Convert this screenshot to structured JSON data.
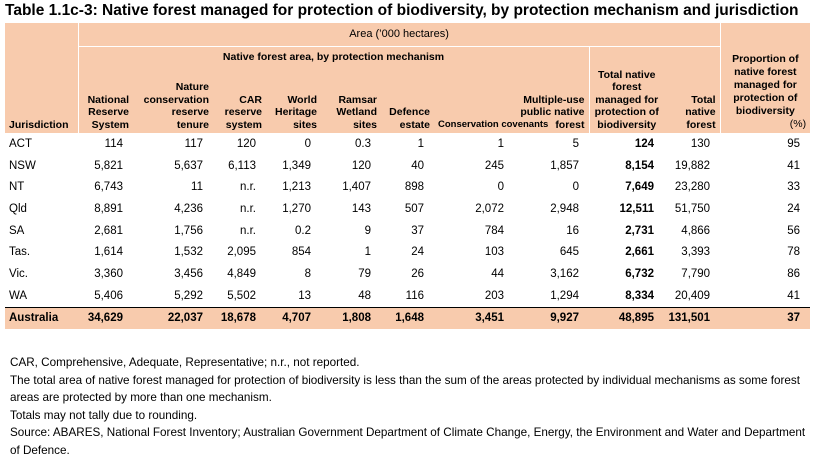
{
  "title": "Table 1.1c-3: Native forest managed for protection of biodiversity, by protection mechanism and jurisdiction",
  "header": {
    "area": "Area (’000 hectares)",
    "native_area_by_mechanism": "Native forest area, by protection mechanism",
    "total_native_protected": "Total native forest managed for protection of biodiversity",
    "total_native": "Total native forest",
    "proportion": "Proportion of native forest managed for protection of biodiversity",
    "proportion_unit": "(%)",
    "jurisdiction": "Jurisdiction",
    "columns": [
      "National Reserve System",
      "Nature conservation reserve tenure",
      "CAR reserve system",
      "World Heritage sites",
      "Ramsar Wetland sites",
      "Defence estate",
      "Conservation covenants",
      "Multiple-use public native forest"
    ]
  },
  "rows": [
    {
      "jurisdiction": "ACT",
      "values": [
        "114",
        "117",
        "120",
        "0",
        "0.3",
        "1",
        "1",
        "5"
      ],
      "total_protected": "124",
      "total_native": "130",
      "proportion": "95"
    },
    {
      "jurisdiction": "NSW",
      "values": [
        "5,821",
        "5,637",
        "6,113",
        "1,349",
        "120",
        "40",
        "245",
        "1,857"
      ],
      "total_protected": "8,154",
      "total_native": "19,882",
      "proportion": "41"
    },
    {
      "jurisdiction": "NT",
      "values": [
        "6,743",
        "11",
        "n.r.",
        "1,213",
        "1,407",
        "898",
        "0",
        "0"
      ],
      "total_protected": "7,649",
      "total_native": "23,280",
      "proportion": "33"
    },
    {
      "jurisdiction": "Qld",
      "values": [
        "8,891",
        "4,236",
        "n.r.",
        "1,270",
        "143",
        "507",
        "2,072",
        "2,948"
      ],
      "total_protected": "12,511",
      "total_native": "51,750",
      "proportion": "24"
    },
    {
      "jurisdiction": "SA",
      "values": [
        "2,681",
        "1,756",
        "n.r.",
        "0.2",
        "9",
        "37",
        "784",
        "16"
      ],
      "total_protected": "2,731",
      "total_native": "4,866",
      "proportion": "56"
    },
    {
      "jurisdiction": "Tas.",
      "values": [
        "1,614",
        "1,532",
        "2,095",
        "854",
        "1",
        "24",
        "103",
        "645"
      ],
      "total_protected": "2,661",
      "total_native": "3,393",
      "proportion": "78"
    },
    {
      "jurisdiction": "Vic.",
      "values": [
        "3,360",
        "3,456",
        "4,849",
        "8",
        "79",
        "26",
        "44",
        "3,162"
      ],
      "total_protected": "6,732",
      "total_native": "7,790",
      "proportion": "86"
    },
    {
      "jurisdiction": "WA",
      "values": [
        "5,406",
        "5,292",
        "5,502",
        "13",
        "48",
        "116",
        "203",
        "1,294"
      ],
      "total_protected": "8,334",
      "total_native": "20,409",
      "proportion": "41"
    }
  ],
  "total": {
    "jurisdiction": "Australia",
    "values": [
      "34,629",
      "22,037",
      "18,678",
      "4,707",
      "1,808",
      "1,648",
      "3,451",
      "9,927"
    ],
    "total_protected": "48,895",
    "total_native": "131,501",
    "proportion": "37"
  },
  "notes": [
    "CAR, Comprehensive, Adequate, Representative; n.r., not reported.",
    "The total area of native forest managed for protection of biodiversity is less than the sum of the areas protected by individual mechanisms as some forest areas are protected by more than one mechanism.",
    "Totals may not tally due to rounding.",
    "Source: ABARES, National Forest Inventory; Australian Government Department of Climate Change, Energy, the Environment and Water and Department of Defence."
  ],
  "colors": {
    "header_fill": "#f8cbad"
  }
}
